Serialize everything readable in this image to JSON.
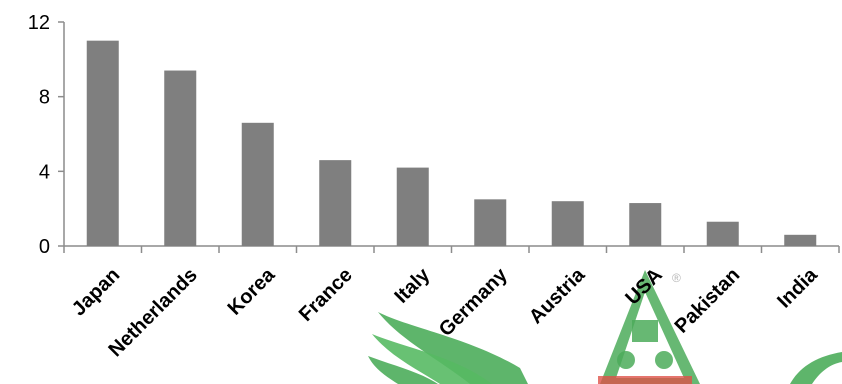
{
  "chart_data": {
    "type": "bar",
    "title": "",
    "xlabel": "",
    "ylabel": "",
    "categories": [
      "Japan",
      "Netherlands",
      "Korea",
      "France",
      "Italy",
      "Germany",
      "Austria",
      "USA",
      "Pakistan",
      "India"
    ],
    "values": [
      11.0,
      9.4,
      6.6,
      4.6,
      4.2,
      2.5,
      2.4,
      2.3,
      1.3,
      0.6
    ],
    "ylim": [
      0,
      12
    ],
    "yticks": [
      0,
      4,
      8,
      12
    ],
    "grid": false,
    "legend": "none",
    "bar_color": "#7f7f7f",
    "axis_color": "#8c8c8c"
  },
  "watermark": {
    "leaf_color": "#2e9e3e",
    "trademark": "®"
  }
}
